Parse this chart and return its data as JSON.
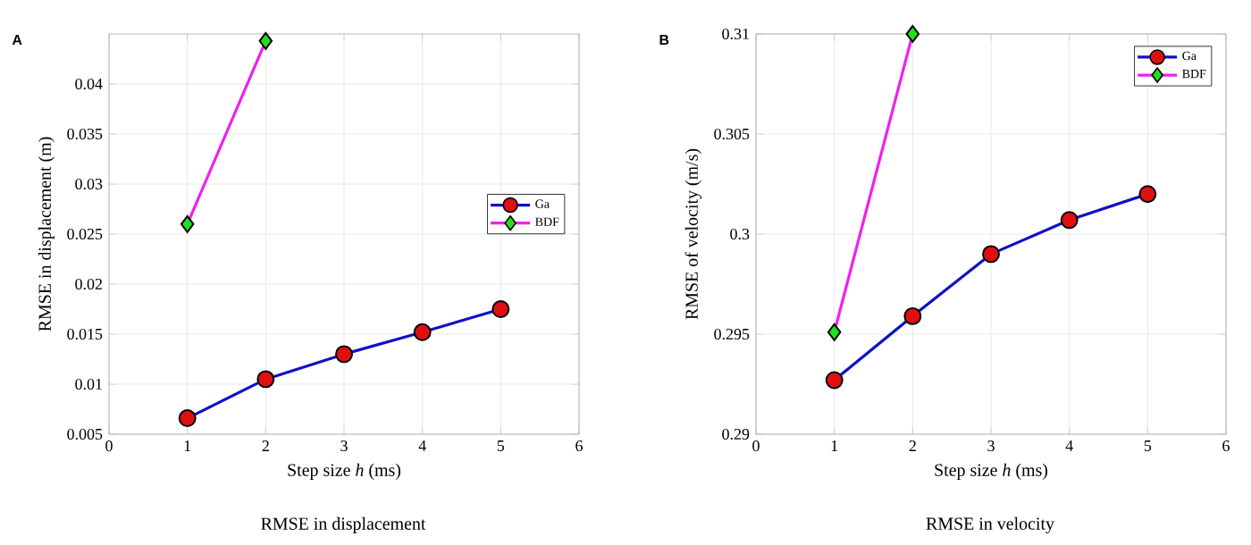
{
  "chart_data": [
    {
      "type": "line",
      "title": "A",
      "xlabel": "Step size *h* (ms)",
      "ylabel": "RMSE in displacement (m)",
      "annotations": [
        "RMSE in displacement"
      ],
      "x": [
        1,
        2,
        3,
        4,
        5
      ],
      "xlim": [
        0,
        6
      ],
      "xticks": [
        0,
        1,
        2,
        3,
        4,
        5,
        6
      ],
      "ylim": [
        0.005,
        0.045
      ],
      "yticks": [
        0.005,
        0.01,
        0.015,
        0.02,
        0.025,
        0.03,
        0.035,
        0.04
      ],
      "grid": true,
      "legend": "right",
      "line_style": "solid",
      "series": [
        {
          "name": "Ga",
          "color": "#1010c8",
          "marker": "circle",
          "colors": [
            "#e01010",
            "#e01010",
            "#e01010",
            "#e01010",
            "#e01010"
          ],
          "values": [
            0.0066,
            0.0105,
            0.013,
            0.0152,
            0.0175
          ]
        },
        {
          "name": "BDF",
          "color": "#ee20ee",
          "marker": "diamond",
          "colors": [
            "#20e020",
            "#20e020",
            "#20e020",
            "#20e020",
            "#20e020"
          ],
          "values": [
            0.026,
            0.0443,
            null,
            null,
            null
          ]
        }
      ]
    },
    {
      "type": "line",
      "title": "B",
      "xlabel": "Step size *h* (ms)",
      "ylabel": "RMSE of velocity (m/s)",
      "annotations": [
        "RMSE in velocity"
      ],
      "x": [
        1,
        2,
        3,
        4,
        5
      ],
      "xlim": [
        0,
        6
      ],
      "xticks": [
        0,
        1,
        2,
        3,
        4,
        5,
        6
      ],
      "ylim": [
        0.29,
        0.31
      ],
      "yticks": [
        0.29,
        0.295,
        0.3,
        0.305,
        0.31
      ],
      "grid": true,
      "legend": "top right",
      "line_style": "solid",
      "series": [
        {
          "name": "Ga",
          "color": "#1010c8",
          "marker": "circle",
          "colors": [
            "#e01010",
            "#e01010",
            "#e01010",
            "#e01010",
            "#e01010"
          ],
          "values": [
            0.2927,
            0.2959,
            0.299,
            0.3007,
            0.302
          ]
        },
        {
          "name": "BDF",
          "color": "#ee20ee",
          "marker": "diamond",
          "colors": [
            "#20e020",
            "#20e020",
            "#20e020",
            "#20e020",
            "#20e020"
          ],
          "values": [
            0.2951,
            0.31,
            null,
            null,
            null
          ]
        }
      ]
    }
  ]
}
